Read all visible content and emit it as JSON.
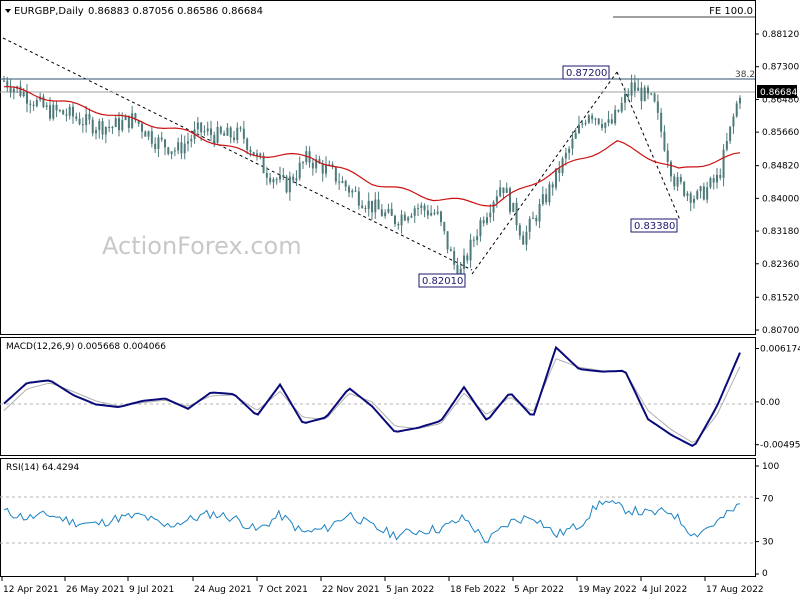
{
  "header": {
    "symbol_caption": "EURGBP,Daily",
    "ohlc": "0.86883 0.87056 0.86586 0.86684",
    "fe_label": "FE 100.0"
  },
  "watermark": "ActionForex.com",
  "colors": {
    "candles": "#4e7a7a",
    "ma_line": "#cc1111",
    "macd_line": "#0a0a7a",
    "macd_signal": "#b0b0b0",
    "rsi_line": "#1a82c4",
    "grid_dash": "#b4b4b4",
    "annotation_box": "#1a1a6e"
  },
  "chart_data": [
    {
      "type": "candlestick",
      "title": "EURGBP,Daily",
      "y_ticks": [
        "0.88120",
        "0.87300",
        "0.86480",
        "0.85660",
        "0.84820",
        "0.84000",
        "0.83180",
        "0.82360",
        "0.81520",
        "0.80700"
      ],
      "ylim": [
        0.807,
        0.885
      ],
      "x_ticks": [
        "12 Apr 2021",
        "26 May 2021",
        "9 Jul 2021",
        "24 Aug 2021",
        "7 Oct 2021",
        "22 Nov 2021",
        "5 Jan 2022",
        "18 Feb 2022",
        "5 Apr 2022",
        "19 May 2022",
        "4 Jul 2022",
        "17 Aug 2022"
      ],
      "series": [
        {
          "name": "Close",
          "x": [
            "12 Apr 2021",
            "26 Apr 2021",
            "10 May 2021",
            "26 May 2021",
            "9 Jun 2021",
            "23 Jun 2021",
            "9 Jul 2021",
            "26 Jul 2021",
            "9 Aug 2021",
            "24 Aug 2021",
            "8 Sep 2021",
            "22 Sep 2021",
            "7 Oct 2021",
            "21 Oct 2021",
            "4 Nov 2021",
            "22 Nov 2021",
            "6 Dec 2021",
            "20 Dec 2021",
            "5 Jan 2022",
            "19 Jan 2022",
            "2 Feb 2022",
            "18 Feb 2022",
            "4 Mar 2022",
            "18 Mar 2022",
            "5 Apr 2022",
            "19 Apr 2022",
            "3 May 2022",
            "19 May 2022",
            "3 Jun 2022",
            "17 Jun 2022",
            "4 Jul 2022",
            "18 Jul 2022",
            "1 Aug 2022",
            "17 Aug 2022",
            "29 Aug 2022"
          ],
          "values": [
            0.8695,
            0.866,
            0.862,
            0.861,
            0.8585,
            0.858,
            0.86,
            0.8545,
            0.852,
            0.857,
            0.8555,
            0.856,
            0.8475,
            0.843,
            0.85,
            0.847,
            0.842,
            0.838,
            0.8345,
            0.838,
            0.836,
            0.8201,
            0.834,
            0.844,
            0.83,
            0.84,
            0.851,
            0.862,
            0.858,
            0.868,
            0.864,
            0.844,
            0.84,
            0.845,
            0.8668
          ]
        },
        {
          "name": "MA",
          "x": [
            "12 Apr 2021",
            "26 May 2021",
            "9 Jul 2021",
            "24 Aug 2021",
            "7 Oct 2021",
            "22 Nov 2021",
            "5 Jan 2022",
            "18 Feb 2022",
            "5 Apr 2022",
            "19 May 2022",
            "4 Jul 2022",
            "17 Aug 2022",
            "29 Aug 2022"
          ],
          "values": [
            0.868,
            0.864,
            0.86,
            0.8565,
            0.851,
            0.8505,
            0.844,
            0.84,
            0.8385,
            0.847,
            0.854,
            0.847,
            0.851
          ]
        }
      ],
      "annotations": [
        {
          "label": "0.87200",
          "x": "26 May 2022",
          "y": 0.872
        },
        {
          "label": "0.82010",
          "x": "7 Mar 2022",
          "y": 0.8201
        },
        {
          "label": "0.83380",
          "x": "14 Jul 2022",
          "y": 0.8338
        },
        {
          "label": "38.2",
          "y": 0.8705
        },
        {
          "label": "0.86684",
          "y": 0.86684
        }
      ],
      "grid": false
    },
    {
      "type": "line",
      "title": "MACD(12,26,9) 0.005668 0.004066",
      "y_ticks": [
        "0.006174",
        "0.00",
        "-0.004952"
      ],
      "ylim": [
        -0.0058,
        0.0067
      ],
      "series": [
        {
          "name": "MACD",
          "values": [
            -0.0002,
            0.0022,
            0.0025,
            0.0008,
            -0.0003,
            -0.0006,
            0.0001,
            0.0004,
            -0.0008,
            0.0011,
            0.0009,
            -0.0016,
            0.002,
            -0.0025,
            -0.0018,
            0.0016,
            -0.0005,
            -0.0035,
            -0.003,
            -0.0022,
            0.0017,
            -0.0022,
            0.0011,
            -0.0018,
            0.0063,
            0.0038,
            0.0035,
            0.0036,
            -0.002,
            -0.0038,
            -0.0052,
            -0.0005,
            0.0057
          ]
        },
        {
          "name": "Signal",
          "values": [
            -0.001,
            0.0015,
            0.0022,
            0.0012,
            0.0001,
            -0.0005,
            -0.0001,
            0.0002,
            -0.0005,
            0.0007,
            0.0008,
            -0.001,
            0.0012,
            -0.0018,
            -0.002,
            0.001,
            0.0,
            -0.0028,
            -0.0031,
            -0.0025,
            0.001,
            -0.0015,
            0.0006,
            -0.0012,
            0.005,
            0.004,
            0.0036,
            0.0035,
            -0.001,
            -0.0032,
            -0.0048,
            -0.0015,
            0.0041
          ]
        }
      ],
      "zero_line": true
    },
    {
      "type": "line",
      "title": "RSI(14) 64.4294",
      "y_ticks": [
        "100",
        "70",
        "30",
        "0"
      ],
      "ylim": [
        0,
        100
      ],
      "levels": [
        70,
        30
      ],
      "series": [
        {
          "name": "RSI",
          "values": [
            58,
            52,
            55,
            48,
            46,
            52,
            54,
            44,
            50,
            56,
            52,
            40,
            55,
            38,
            42,
            56,
            44,
            36,
            40,
            42,
            52,
            30,
            48,
            54,
            36,
            45,
            68,
            60,
            56,
            58,
            36,
            48,
            64
          ]
        }
      ]
    }
  ]
}
